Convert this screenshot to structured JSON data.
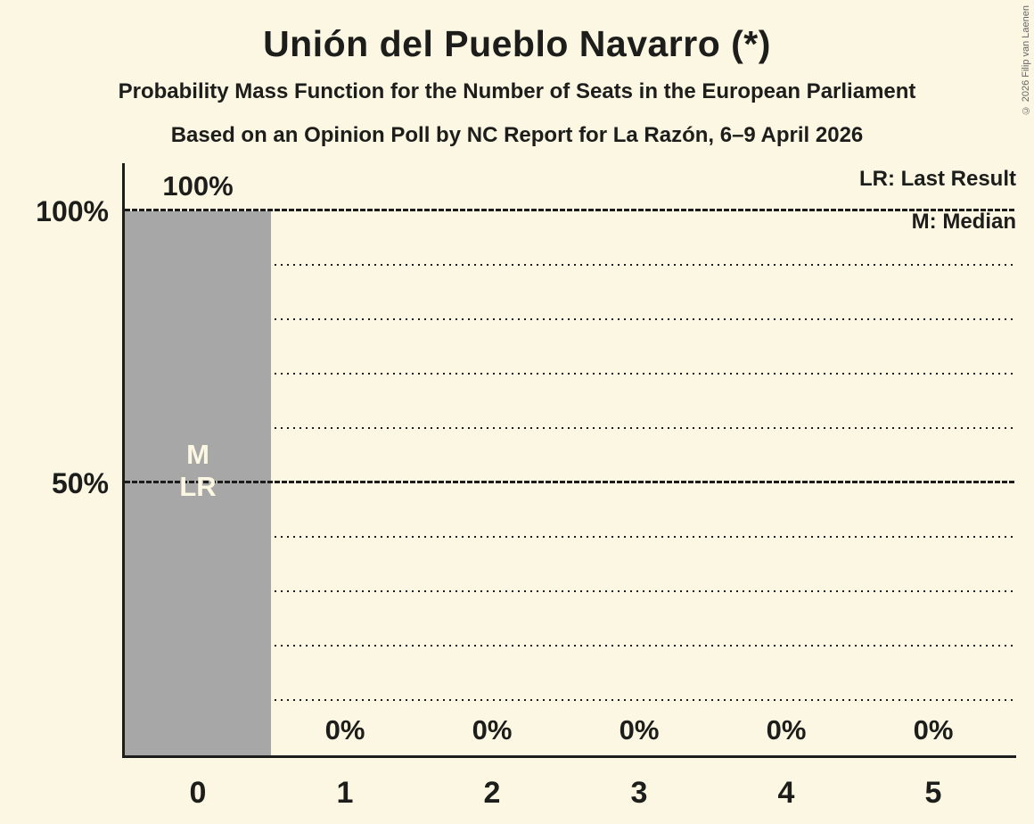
{
  "title": "Unión del Pueblo Navarro (*)",
  "subtitle1": "Probability Mass Function for the Number of Seats in the European Parliament",
  "subtitle2": "Based on an Opinion Poll by NC Report for La Razón, 6–9 April 2026",
  "copyright": "© 2026 Filip van Laenen",
  "legend": {
    "lr": "LR: Last Result",
    "m": "M: Median"
  },
  "y_axis": {
    "ticks": [
      {
        "label": "100%",
        "percent": 100
      },
      {
        "label": "50%",
        "percent": 50
      }
    ]
  },
  "chart_data": {
    "type": "bar",
    "title": "Unión del Pueblo Navarro (*)",
    "categories": [
      "0",
      "1",
      "2",
      "3",
      "4",
      "5"
    ],
    "values": [
      100,
      0,
      0,
      0,
      0,
      0
    ],
    "value_labels": [
      "100%",
      "0%",
      "0%",
      "0%",
      "0%",
      "0%"
    ],
    "ylim": [
      0,
      100
    ],
    "gridlines_minor_percent": [
      10,
      20,
      30,
      40,
      60,
      70,
      80,
      90
    ],
    "gridlines_major_percent": [
      50,
      100
    ],
    "bar_annotations": [
      {
        "category_index": 0,
        "lines": [
          "M",
          "LR"
        ]
      }
    ],
    "legend_position": "top-right",
    "grid": "horizontal dotted minor, dashed major"
  },
  "colors": {
    "background": "#FBF7E2",
    "bar": "#A7A7A7",
    "bar_annotation_text": "#FBF7E2",
    "text": "#1D1D1B",
    "copyright_text": "#666666"
  }
}
